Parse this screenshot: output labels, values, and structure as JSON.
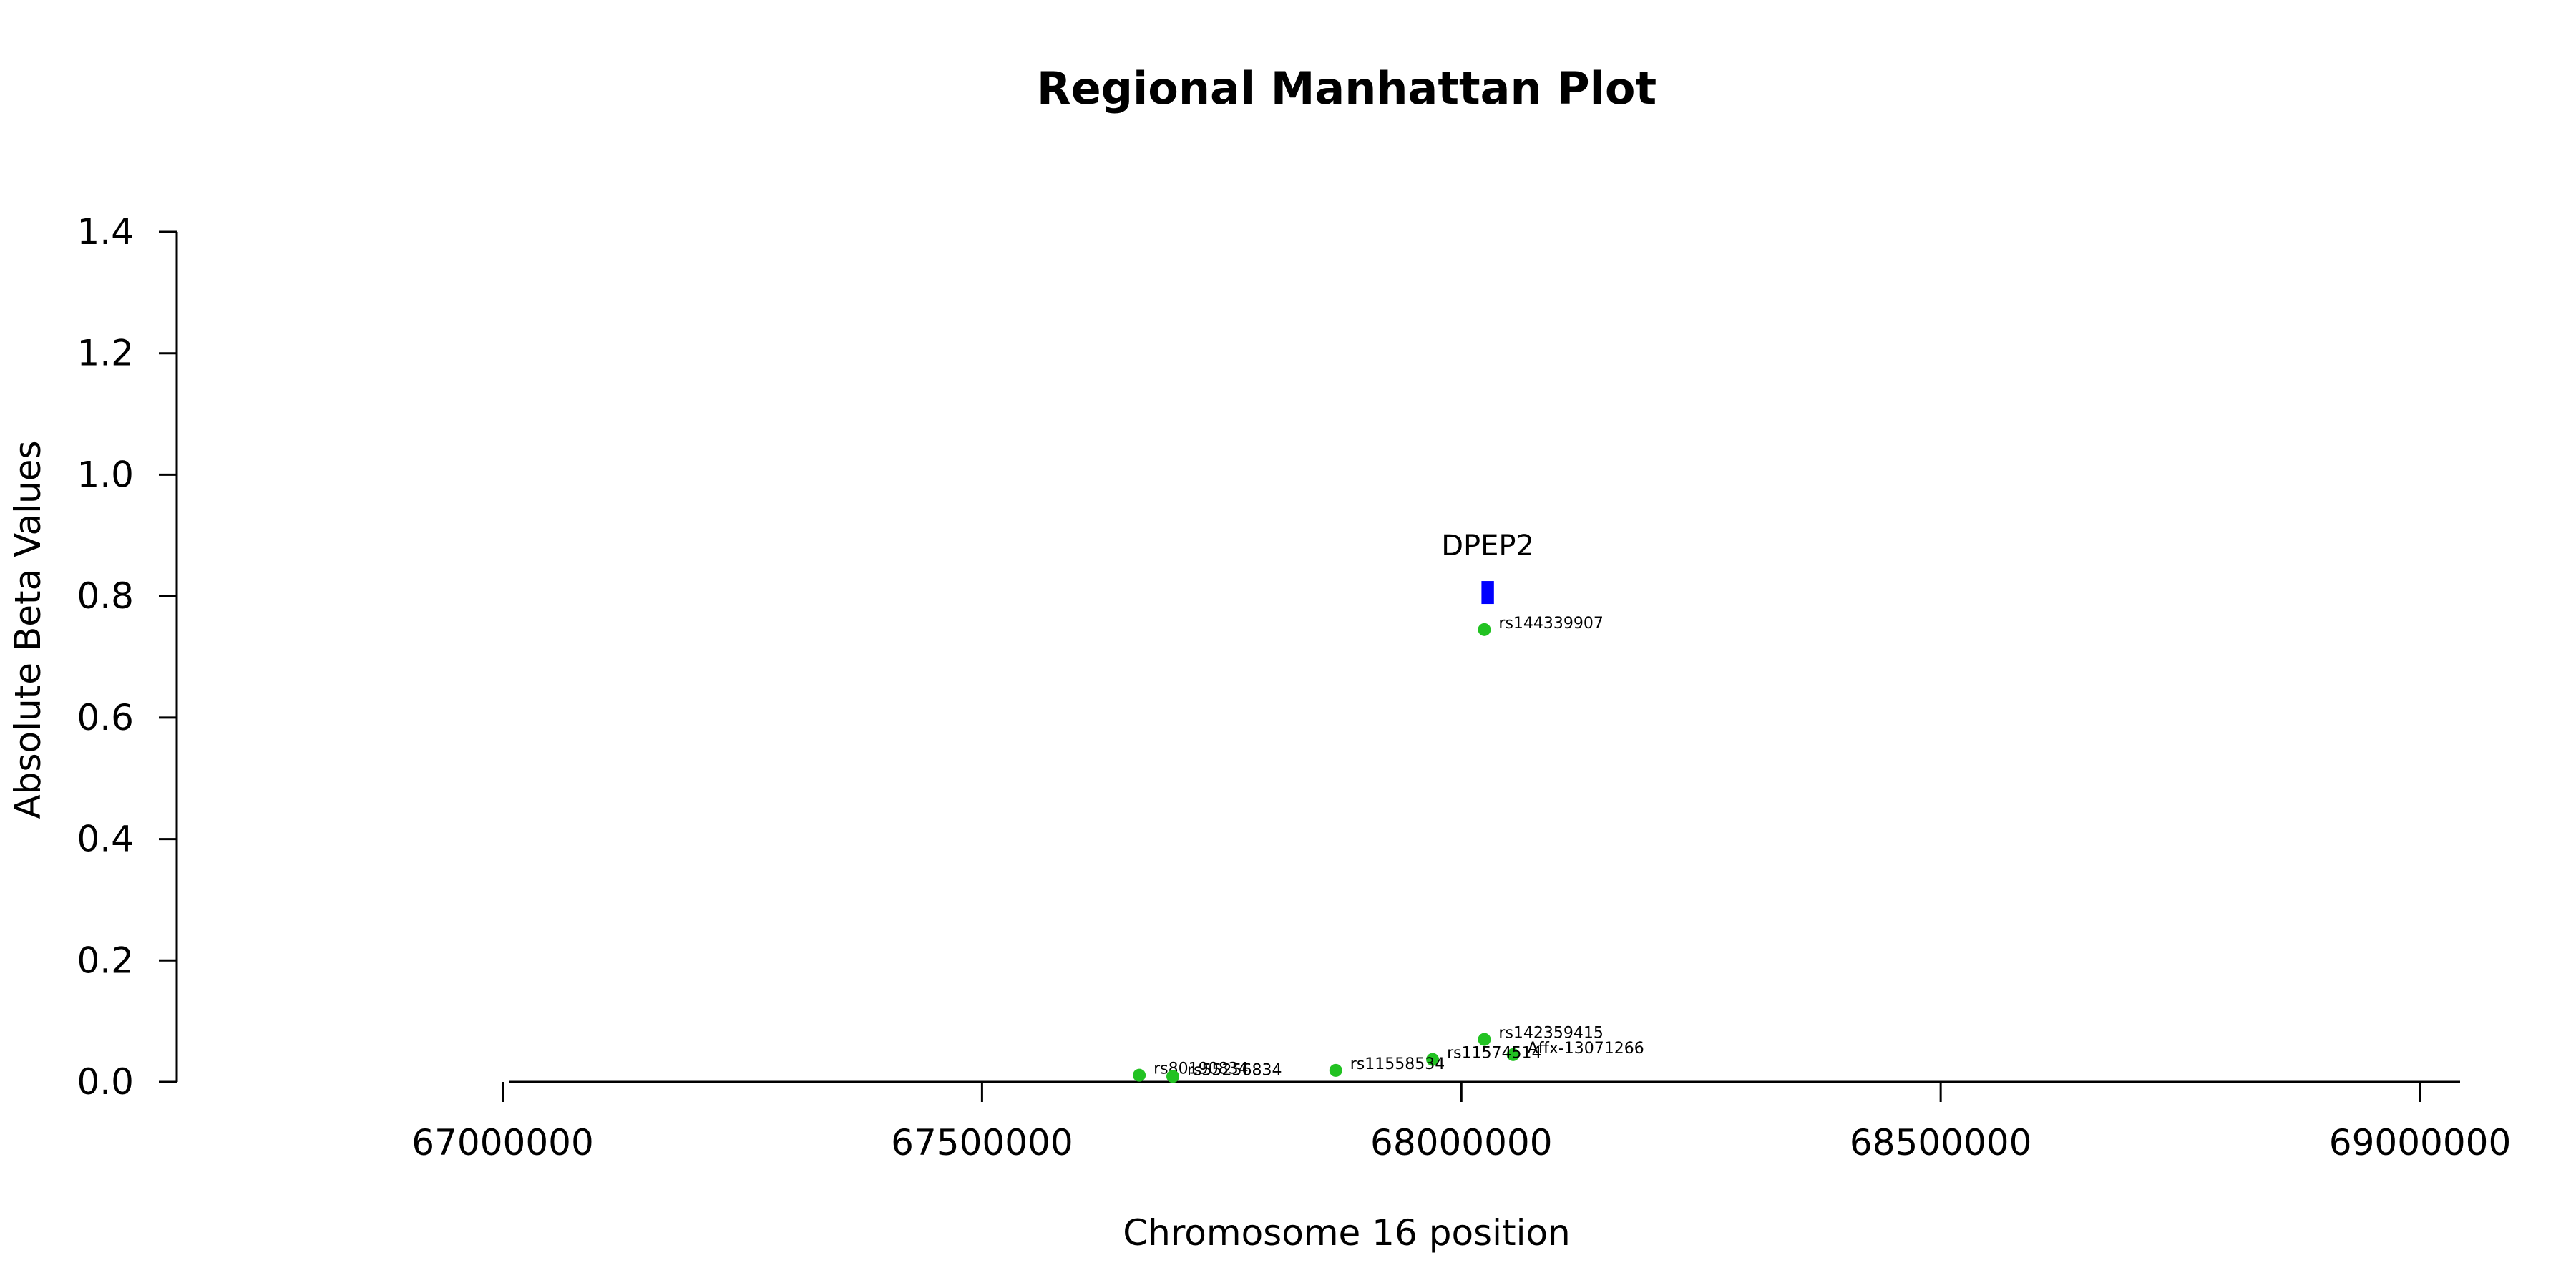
{
  "chart_data": {
    "type": "scatter",
    "title": "Regional Manhattan Plot",
    "xlabel": "Chromosome 16 position",
    "ylabel": "Absolute Beta Values",
    "xlim": [
      66660000,
      69100000
    ],
    "ylim": [
      0,
      1.4
    ],
    "x_ticks": [
      67000000,
      67500000,
      68000000,
      68500000,
      69000000
    ],
    "x_tick_labels": [
      "67000000",
      "67500000",
      "68000000",
      "68500000",
      "69000000"
    ],
    "y_ticks": [
      0,
      0.2,
      0.4,
      0.6,
      0.8,
      1.0,
      1.2,
      1.4
    ],
    "y_tick_labels": [
      "0.0",
      "0.2",
      "0.4",
      "0.6",
      "0.8",
      "1.0",
      "1.2",
      "1.4"
    ],
    "grid": false,
    "point_color": "#22c222",
    "gene_color": "#0000ff",
    "genes": [
      {
        "name": "DPEP2",
        "start": 68021000,
        "end": 68034000,
        "y": 0.806
      }
    ],
    "points": [
      {
        "label": "rs144339907",
        "x": 68024000,
        "y": 0.745
      },
      {
        "label": "rs142359415",
        "x": 68024000,
        "y": 0.07
      },
      {
        "label": "Affx-13071266",
        "x": 68054000,
        "y": 0.045
      },
      {
        "label": "rs11574514",
        "x": 67970000,
        "y": 0.037
      },
      {
        "label": "rs11558534",
        "x": 67869000,
        "y": 0.019
      },
      {
        "label": "rs80190834",
        "x": 67664000,
        "y": 0.011
      },
      {
        "label": "rs55256834",
        "x": 67699000,
        "y": 0.009
      }
    ]
  }
}
